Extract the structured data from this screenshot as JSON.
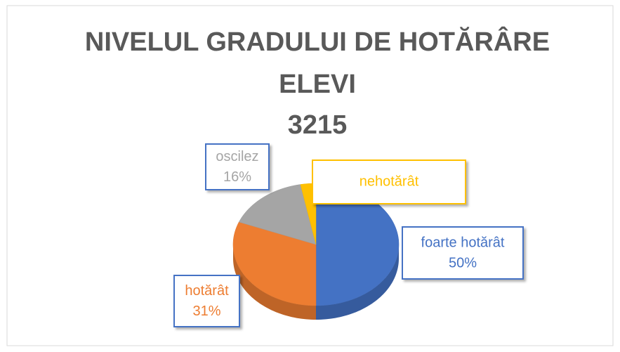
{
  "chart_data": {
    "type": "pie",
    "title": [
      "NIVELUL GRADULUI DE HOTĂRÂRE",
      "ELEVI",
      "3215"
    ],
    "categories": [
      "foarte hotărât",
      "hotărât",
      "oscilez",
      "nehotărât"
    ],
    "values": [
      50,
      31,
      16,
      3
    ],
    "value_labels": [
      "50%",
      "31%",
      "16%",
      null
    ],
    "colors": [
      "#4472c4",
      "#ed7d31",
      "#a5a5a5",
      "#ffc000"
    ],
    "three_d": true
  }
}
